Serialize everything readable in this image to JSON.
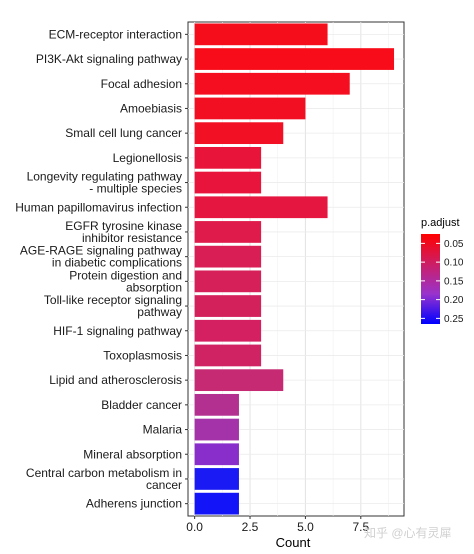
{
  "chart_data": {
    "type": "bar",
    "orientation": "horizontal",
    "categories": [
      [
        "ECM-receptor interaction"
      ],
      [
        "PI3K-Akt signaling pathway"
      ],
      [
        "Focal adhesion"
      ],
      [
        "Amoebiasis"
      ],
      [
        "Small cell lung cancer"
      ],
      [
        "Legionellosis"
      ],
      [
        "Longevity regulating pathway",
        "- multiple species"
      ],
      [
        "Human papillomavirus infection"
      ],
      [
        "EGFR tyrosine kinase",
        "inhibitor resistance"
      ],
      [
        "AGE-RAGE signaling pathway",
        "in diabetic complications"
      ],
      [
        "Protein digestion and",
        "absorption"
      ],
      [
        "Toll-like receptor signaling",
        "pathway"
      ],
      [
        "HIF-1 signaling pathway"
      ],
      [
        "Toxoplasmosis"
      ],
      [
        "Lipid and atherosclerosis"
      ],
      [
        "Bladder cancer"
      ],
      [
        "Malaria"
      ],
      [
        "Mineral absorption"
      ],
      [
        "Central carbon metabolism in",
        "cancer"
      ],
      [
        "Adherens junction"
      ]
    ],
    "values": [
      6,
      9,
      7,
      5,
      4,
      3,
      3,
      6,
      3,
      3,
      3,
      3,
      3,
      3,
      4,
      2,
      2,
      2,
      2,
      2
    ],
    "colors": [
      "#f60d1c",
      "#f80c1a",
      "#f50e1f",
      "#f30f22",
      "#f21024",
      "#e8143a",
      "#e9143c",
      "#e51740",
      "#df1b4b",
      "#d91e55",
      "#d62059",
      "#d3215c",
      "#d42060",
      "#cf2363",
      "#c52a73",
      "#b32f90",
      "#a432a8",
      "#8a2ecb",
      "#1a1af5",
      "#1414f8"
    ],
    "xlabel": "Count",
    "ylabel": "",
    "xlim": [
      -0.3,
      9.45
    ],
    "x_ticks": [
      "0.0",
      "2.5",
      "5.0",
      "7.5"
    ],
    "x_tick_values": [
      0,
      2.5,
      5,
      7.5
    ],
    "grid": true,
    "legend": {
      "title": "p.adjust",
      "placement": "right",
      "ticks": [
        "0.05",
        "0.10",
        "0.15",
        "0.20",
        "0.25"
      ],
      "tick_values": [
        0.05,
        0.1,
        0.15,
        0.2,
        0.25
      ],
      "range": [
        0.025,
        0.265
      ],
      "gradient": [
        "#ff0000",
        "#cc1e66",
        "#9933cc",
        "#0000ff"
      ]
    }
  },
  "watermark": "知乎 @心有灵犀"
}
